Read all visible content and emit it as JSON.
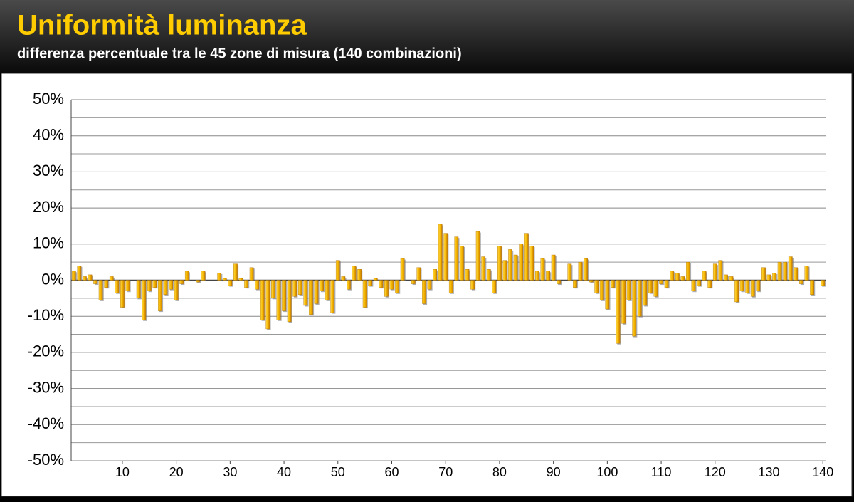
{
  "chart_data": {
    "type": "bar",
    "title": "Uniformità luminanza",
    "subtitle": "differenza percentuale tra le 45 zone di misura (140 combinazioni)",
    "x": [
      1,
      2,
      3,
      4,
      5,
      6,
      7,
      8,
      9,
      10,
      11,
      12,
      13,
      14,
      15,
      16,
      17,
      18,
      19,
      20,
      21,
      22,
      23,
      24,
      25,
      26,
      27,
      28,
      29,
      30,
      31,
      32,
      33,
      34,
      35,
      36,
      37,
      38,
      39,
      40,
      41,
      42,
      43,
      44,
      45,
      46,
      47,
      48,
      49,
      50,
      51,
      52,
      53,
      54,
      55,
      56,
      57,
      58,
      59,
      60,
      61,
      62,
      63,
      64,
      65,
      66,
      67,
      68,
      69,
      70,
      71,
      72,
      73,
      74,
      75,
      76,
      77,
      78,
      79,
      80,
      81,
      82,
      83,
      84,
      85,
      86,
      87,
      88,
      89,
      90,
      91,
      92,
      93,
      94,
      95,
      96,
      97,
      98,
      99,
      100,
      101,
      102,
      103,
      104,
      105,
      106,
      107,
      108,
      109,
      110,
      111,
      112,
      113,
      114,
      115,
      116,
      117,
      118,
      119,
      120,
      121,
      122,
      123,
      124,
      125,
      126,
      127,
      128,
      129,
      130,
      131,
      132,
      133,
      134,
      135,
      136,
      137,
      138,
      139,
      140
    ],
    "values": [
      2.5,
      4,
      1,
      1.5,
      -1,
      -5.5,
      -2,
      1,
      -3.5,
      -7.5,
      -3,
      0,
      -5,
      -11,
      -3,
      -2,
      -8.5,
      -4,
      -2.5,
      -5.5,
      -1,
      2.5,
      0,
      -0.5,
      2.5,
      0,
      0,
      2,
      0.5,
      -1.5,
      4.5,
      0.5,
      -2,
      3.5,
      -2.5,
      -11,
      -13.5,
      -5,
      -11,
      -8.5,
      -11.5,
      -4.5,
      -4,
      -7,
      -9.5,
      -6.5,
      -3,
      -5.5,
      -9,
      5.5,
      1,
      -2.5,
      4,
      3,
      -7.5,
      -1.5,
      0.5,
      -2,
      -4.5,
      -2.5,
      -3.5,
      6,
      0,
      -1,
      3.5,
      -6.5,
      -2.5,
      3,
      15.5,
      13,
      -3.5,
      12,
      9.5,
      3,
      -2.5,
      13.5,
      6.5,
      3,
      -3.5,
      9.5,
      5.5,
      8.5,
      7,
      10,
      13,
      9.5,
      2.5,
      6,
      2.5,
      7,
      -1,
      0,
      4.5,
      -2,
      5,
      6,
      -0.5,
      -3.5,
      -5.5,
      -8,
      -2,
      -17.5,
      -12,
      -5.5,
      -15.5,
      -10,
      -7,
      -3.5,
      -4.5,
      -1,
      -2,
      2.5,
      2,
      1,
      5,
      -3,
      -1.5,
      2.5,
      -2,
      4.5,
      5.5,
      1.5,
      1,
      -6,
      -3,
      -3.5,
      -4.5,
      -3,
      3.5,
      1.5,
      2,
      5,
      5,
      6.5,
      3.5,
      -1,
      4,
      -4,
      0,
      -1.5
    ],
    "color": "#f5b800",
    "xlim": [
      0.5,
      140.5
    ],
    "xticks": [
      10,
      20,
      30,
      40,
      50,
      60,
      70,
      80,
      90,
      100,
      110,
      120,
      130,
      140
    ],
    "ylim": [
      -50,
      50
    ],
    "yticks": [
      {
        "value": -50,
        "label": "-50%"
      },
      {
        "value": -40,
        "label": "-40%"
      },
      {
        "value": -30,
        "label": "-30%"
      },
      {
        "value": -20,
        "label": "-20%"
      },
      {
        "value": -10,
        "label": "-10%"
      },
      {
        "value": 0,
        "label": "0%"
      },
      {
        "value": 10,
        "label": "10%"
      },
      {
        "value": 20,
        "label": "20%"
      },
      {
        "value": 30,
        "label": "30%"
      },
      {
        "value": 40,
        "label": "40%"
      },
      {
        "value": 50,
        "label": "50%"
      }
    ],
    "minor_yticks": [
      -45,
      -35,
      -25,
      -15,
      -5,
      5,
      15,
      25,
      35,
      45
    ],
    "grid": true
  }
}
